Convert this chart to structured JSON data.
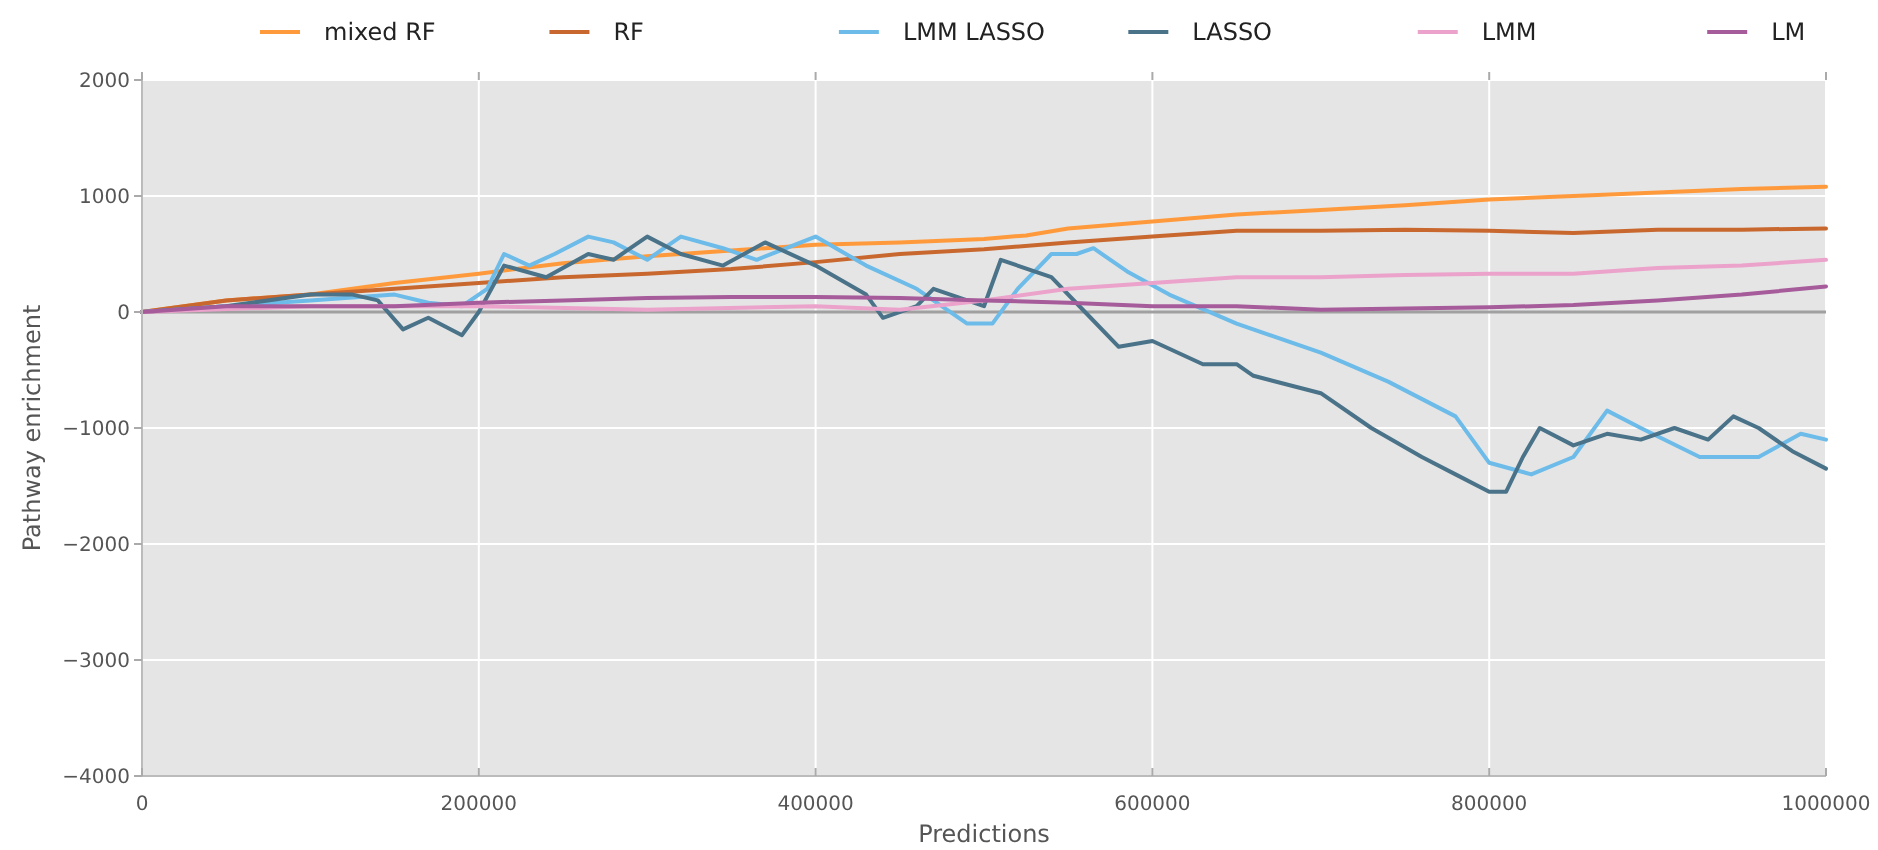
{
  "chart_data": {
    "type": "line",
    "xlabel": "Predictions",
    "ylabel": "Pathway enrichment",
    "xlim": [
      0,
      1000000
    ],
    "ylim": [
      -4000,
      2000
    ],
    "xticks": [
      0,
      200000,
      400000,
      600000,
      800000,
      1000000
    ],
    "yticks": [
      {
        "value": -4000,
        "label": "−4000"
      },
      {
        "value": -3000,
        "label": "−3000"
      },
      {
        "value": -2000,
        "label": "−2000"
      },
      {
        "value": -1000,
        "label": "−1000"
      },
      0,
      1000,
      2000
    ],
    "grid": true,
    "legend": "top",
    "line_style": "solid",
    "marker": "none",
    "ref_lines": [
      {
        "axis": "y",
        "value": 0,
        "label": null,
        "color": "#a0a0a0"
      }
    ],
    "series": [
      {
        "name": "mixed RF",
        "color": "#ff9a3c",
        "x": [
          0,
          50000,
          100000,
          150000,
          200000,
          250000,
          300000,
          350000,
          400000,
          450000,
          500000,
          525000,
          550000,
          600000,
          650000,
          700000,
          750000,
          800000,
          850000,
          900000,
          950000,
          1000000
        ],
        "values": [
          0,
          100,
          150,
          250,
          330,
          420,
          480,
          530,
          580,
          600,
          630,
          660,
          720,
          780,
          840,
          880,
          920,
          970,
          1000,
          1030,
          1060,
          1080
        ]
      },
      {
        "name": "RF",
        "color": "#c8682f",
        "x": [
          0,
          50000,
          100000,
          150000,
          200000,
          250000,
          300000,
          350000,
          400000,
          450000,
          500000,
          550000,
          600000,
          650000,
          700000,
          750000,
          800000,
          850000,
          900000,
          950000,
          1000000
        ],
        "values": [
          0,
          100,
          150,
          200,
          250,
          300,
          330,
          370,
          430,
          500,
          540,
          600,
          650,
          700,
          700,
          710,
          700,
          680,
          710,
          710,
          720
        ]
      },
      {
        "name": "LMM LASSO",
        "color": "#6cbbe9",
        "x": [
          0,
          50000,
          100000,
          150000,
          170000,
          190000,
          205000,
          215000,
          230000,
          245000,
          265000,
          280000,
          300000,
          320000,
          345000,
          365000,
          400000,
          430000,
          460000,
          490000,
          505000,
          520000,
          540000,
          555000,
          565000,
          585000,
          610000,
          650000,
          700000,
          740000,
          780000,
          800000,
          825000,
          850000,
          870000,
          890000,
          925000,
          960000,
          985000,
          1000000
        ],
        "values": [
          0,
          50,
          100,
          150,
          80,
          50,
          200,
          500,
          400,
          500,
          650,
          600,
          450,
          650,
          550,
          450,
          650,
          400,
          200,
          -100,
          -100,
          200,
          500,
          500,
          550,
          350,
          150,
          -100,
          -350,
          -600,
          -900,
          -1300,
          -1400,
          -1250,
          -850,
          -1000,
          -1250,
          -1250,
          -1050,
          -1100
        ]
      },
      {
        "name": "LASSO",
        "color": "#4a7389",
        "x": [
          0,
          50000,
          100000,
          125000,
          140000,
          155000,
          170000,
          190000,
          200000,
          215000,
          240000,
          265000,
          280000,
          290000,
          300000,
          320000,
          345000,
          370000,
          400000,
          430000,
          440000,
          460000,
          470000,
          490000,
          500000,
          510000,
          540000,
          560000,
          580000,
          600000,
          630000,
          650000,
          660000,
          700000,
          730000,
          760000,
          780000,
          800000,
          810000,
          820000,
          830000,
          850000,
          870000,
          890000,
          910000,
          930000,
          945000,
          960000,
          980000,
          1000000
        ],
        "values": [
          0,
          50,
          150,
          150,
          100,
          -150,
          -50,
          -200,
          0,
          400,
          300,
          500,
          450,
          550,
          650,
          500,
          400,
          600,
          400,
          150,
          -50,
          50,
          200,
          100,
          50,
          450,
          300,
          0,
          -300,
          -250,
          -450,
          -450,
          -550,
          -700,
          -1000,
          -1250,
          -1400,
          -1550,
          -1550,
          -1250,
          -1000,
          -1150,
          -1050,
          -1100,
          -1000,
          -1100,
          -900,
          -1000,
          -1200,
          -1350
        ]
      },
      {
        "name": "LMM",
        "color": "#eba3cb",
        "x": [
          0,
          100000,
          200000,
          300000,
          400000,
          450000,
          500000,
          550000,
          600000,
          650000,
          700000,
          750000,
          800000,
          850000,
          900000,
          950000,
          1000000
        ],
        "values": [
          0,
          50,
          50,
          20,
          50,
          20,
          100,
          200,
          250,
          300,
          300,
          320,
          330,
          330,
          380,
          400,
          450
        ]
      },
      {
        "name": "LM",
        "color": "#a65b9a",
        "x": [
          0,
          50000,
          100000,
          150000,
          200000,
          250000,
          300000,
          350000,
          400000,
          450000,
          500000,
          550000,
          600000,
          650000,
          700000,
          750000,
          800000,
          850000,
          900000,
          950000,
          1000000
        ],
        "values": [
          0,
          50,
          50,
          50,
          80,
          100,
          120,
          130,
          130,
          120,
          100,
          80,
          50,
          50,
          20,
          30,
          40,
          60,
          100,
          150,
          220
        ]
      }
    ]
  }
}
